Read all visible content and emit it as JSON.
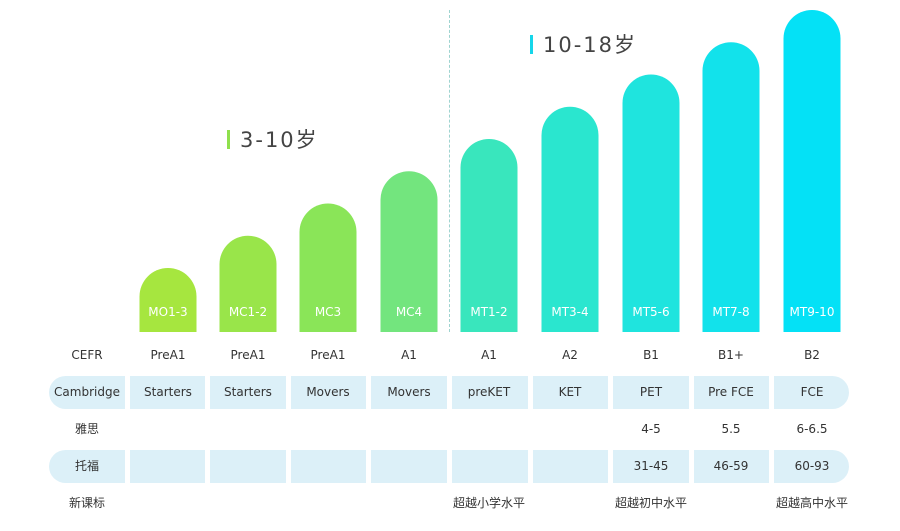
{
  "age_groups": [
    {
      "label": "3-10岁",
      "color": "#8fe04d"
    },
    {
      "label": "10-18岁",
      "color": "#15d6ea"
    }
  ],
  "chart_data": {
    "type": "bar",
    "categories": [
      "MO1-3",
      "MC1-2",
      "MC3",
      "MC4",
      "MT1-2",
      "MT3-4",
      "MT5-6",
      "MT7-8",
      "MT9-10"
    ],
    "values": [
      1,
      2,
      3,
      4,
      5,
      6,
      7,
      8,
      9
    ],
    "colors": [
      "#a6e63f",
      "#99e54a",
      "#8ae558",
      "#73e57e",
      "#39e6bd",
      "#2ae6cf",
      "#1fe4de",
      "#12e2eb",
      "#04e1f6"
    ],
    "ylim": [
      0,
      9
    ]
  },
  "table": {
    "rows": [
      {
        "label": "CEFR",
        "banded": false,
        "cells": [
          "PreA1",
          "PreA1",
          "PreA1",
          "A1",
          "A1",
          "A2",
          "B1",
          "B1+",
          "B2"
        ]
      },
      {
        "label": "Cambridge",
        "banded": true,
        "cells": [
          "Starters",
          "Starters",
          "Movers",
          "Movers",
          "preKET",
          "KET",
          "PET",
          "Pre FCE",
          "FCE"
        ]
      },
      {
        "label": "雅思",
        "banded": false,
        "cells": [
          "",
          "",
          "",
          "",
          "",
          "",
          "4-5",
          "5.5",
          "6-6.5"
        ]
      },
      {
        "label": "托福",
        "banded": true,
        "cells": [
          "",
          "",
          "",
          "",
          "",
          "",
          "31-45",
          "46-59",
          "60-93"
        ]
      },
      {
        "label": "新课标",
        "banded": false,
        "cells": [
          "",
          "",
          "",
          "",
          "超越小学水平",
          "",
          "超越初中水平",
          "",
          "超越高中水平"
        ]
      }
    ]
  }
}
